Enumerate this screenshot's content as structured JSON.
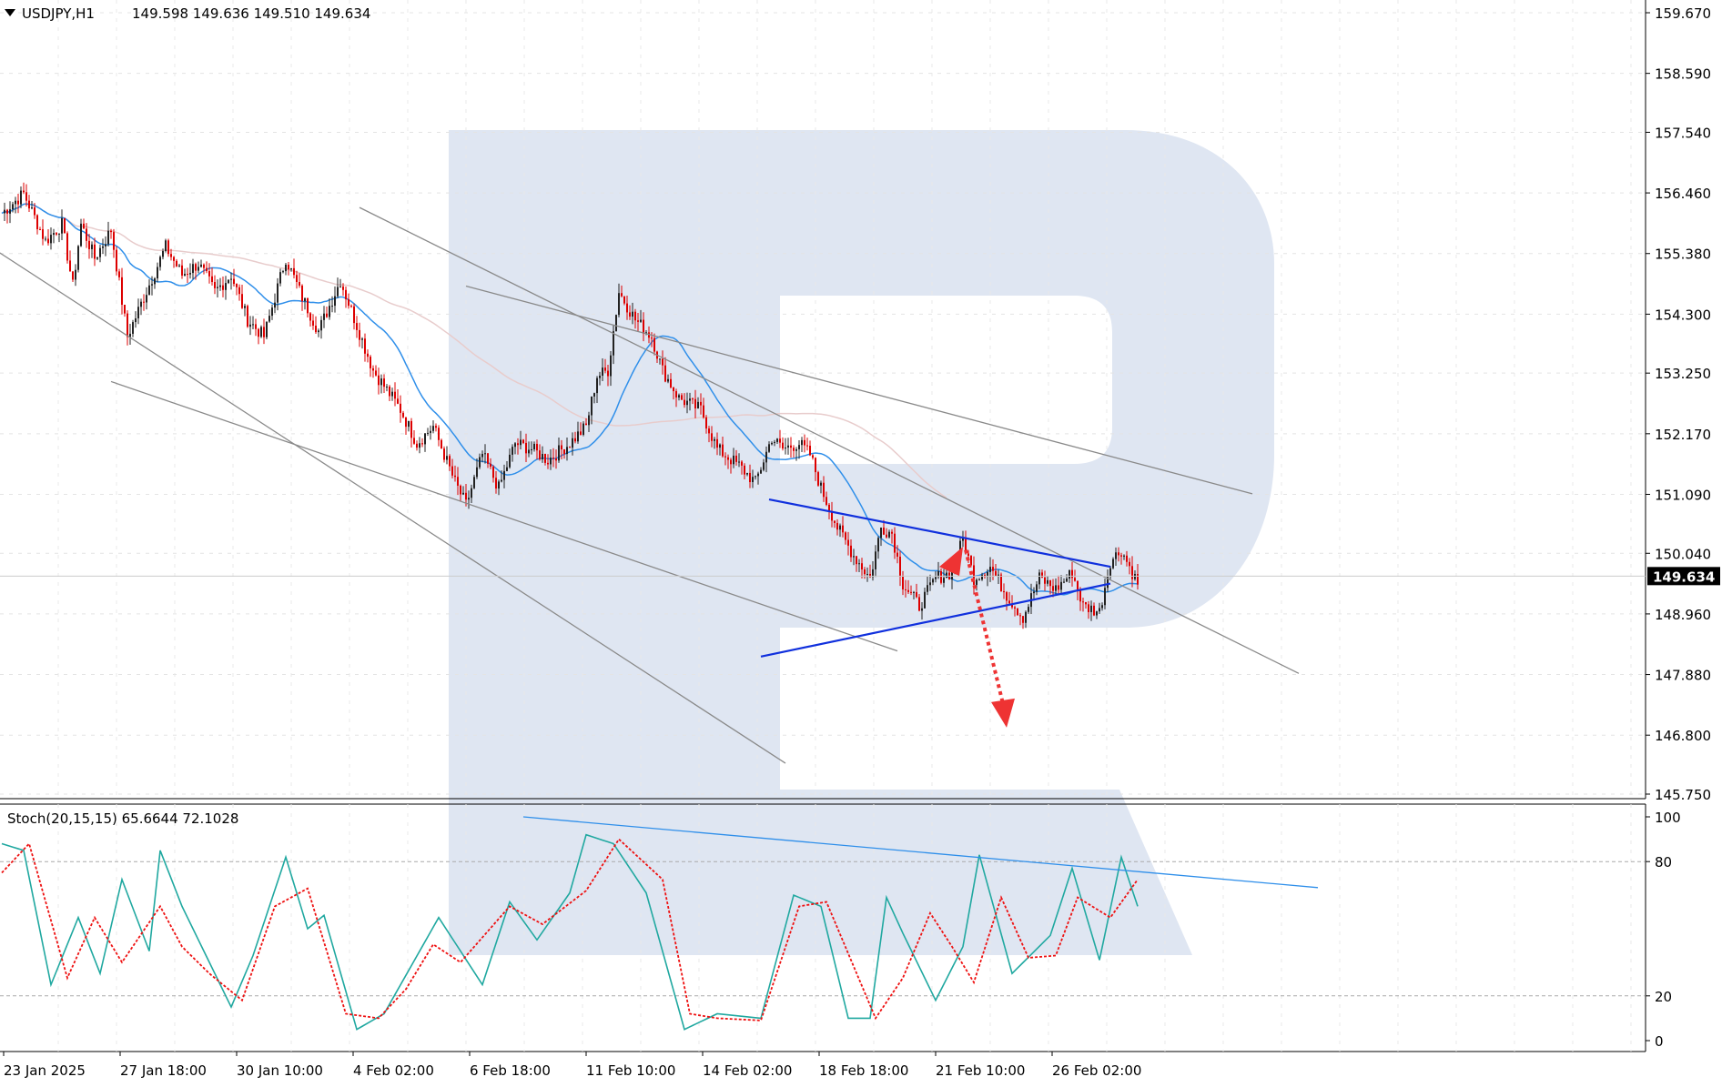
{
  "symbol_header": {
    "menu_arrow": "triangle-down-icon",
    "symbol": "USDJPY,H1",
    "ohlc": "149.598 149.636 149.510 149.634"
  },
  "oscillator_header": {
    "label": "Stoch(20,15,15) 65.6644 72.1028"
  },
  "watermark": {
    "shape": "R",
    "color": "#dfe6f2"
  },
  "colors": {
    "bull_candle": "#222222",
    "bear_candle": "#dd0000",
    "ma_fast": "#2f8fea",
    "ma_slow": "#e8cccc",
    "trendline": "#8a8a8a",
    "triangle": "#1030dd",
    "forecast": "#ee3333",
    "stoch_main": "#20a8a0",
    "stoch_signal": "#ee1111",
    "price_tag_bg": "#000000"
  },
  "chart_data": [
    {
      "type": "candlestick",
      "symbol": "USDJPY",
      "timeframe": "H1",
      "current_price": "149.634",
      "y_ticks": [
        "159.670",
        "158.590",
        "157.540",
        "156.460",
        "155.380",
        "154.300",
        "153.250",
        "152.170",
        "151.090",
        "150.040",
        "148.960",
        "147.880",
        "146.800",
        "145.750"
      ],
      "ylim": [
        145.75,
        159.67
      ],
      "x_ticks": [
        "23 Jan 2025",
        "27 Jan 18:00",
        "30 Jan 10:00",
        "4 Feb 02:00",
        "6 Feb 18:00",
        "11 Feb 10:00",
        "14 Feb 02:00",
        "18 Feb 18:00",
        "21 Feb 10:00",
        "26 Feb 02:00"
      ],
      "price_path": [
        [
          0,
          156.1
        ],
        [
          8,
          156.45
        ],
        [
          16,
          155.6
        ],
        [
          22,
          155.9
        ],
        [
          26,
          154.8
        ],
        [
          29,
          155.9
        ],
        [
          34,
          155.3
        ],
        [
          40,
          155.8
        ],
        [
          46,
          153.9
        ],
        [
          52,
          154.6
        ],
        [
          60,
          155.5
        ],
        [
          66,
          155.0
        ],
        [
          72,
          155.2
        ],
        [
          78,
          154.7
        ],
        [
          84,
          155.0
        ],
        [
          90,
          154.2
        ],
        [
          96,
          153.9
        ],
        [
          104,
          155.3
        ],
        [
          110,
          154.6
        ],
        [
          116,
          154.0
        ],
        [
          124,
          154.9
        ],
        [
          130,
          154.1
        ],
        [
          136,
          153.3
        ],
        [
          146,
          152.6
        ],
        [
          152,
          152.0
        ],
        [
          158,
          152.3
        ],
        [
          166,
          151.3
        ],
        [
          170,
          150.9
        ],
        [
          176,
          151.8
        ],
        [
          182,
          151.2
        ],
        [
          188,
          152.0
        ],
        [
          194,
          151.9
        ],
        [
          200,
          151.7
        ],
        [
          208,
          152.0
        ],
        [
          214,
          152.3
        ],
        [
          218,
          153.2
        ],
        [
          222,
          153.3
        ],
        [
          226,
          154.7
        ],
        [
          232,
          154.2
        ],
        [
          238,
          153.9
        ],
        [
          242,
          153.3
        ],
        [
          248,
          152.8
        ],
        [
          256,
          152.6
        ],
        [
          262,
          151.9
        ],
        [
          270,
          151.6
        ],
        [
          276,
          151.3
        ],
        [
          282,
          152.1
        ],
        [
          286,
          151.9
        ],
        [
          292,
          152.0
        ],
        [
          296,
          151.8
        ],
        [
          300,
          151.2
        ],
        [
          306,
          150.5
        ],
        [
          312,
          150.0
        ],
        [
          318,
          149.6
        ],
        [
          322,
          150.5
        ],
        [
          326,
          150.4
        ],
        [
          330,
          149.5
        ],
        [
          336,
          149.1
        ],
        [
          342,
          149.6
        ],
        [
          348,
          149.7
        ],
        [
          352,
          150.3
        ],
        [
          356,
          149.6
        ],
        [
          362,
          149.8
        ],
        [
          368,
          149.3
        ],
        [
          374,
          148.9
        ],
        [
          380,
          149.6
        ],
        [
          386,
          149.4
        ],
        [
          392,
          149.7
        ],
        [
          396,
          149.1
        ],
        [
          402,
          149.0
        ],
        [
          406,
          149.9
        ],
        [
          410,
          150.1
        ],
        [
          416,
          149.5
        ]
      ],
      "moving_averages": [
        {
          "name": "fast",
          "color_key": "ma_fast"
        },
        {
          "name": "slow",
          "color_key": "ma_slow"
        }
      ],
      "forecast": {
        "direction": "down",
        "from": 150.1,
        "to": 147.0
      }
    },
    {
      "type": "line",
      "indicator": "Stoch(20,15,15)",
      "main": 65.6644,
      "signal": 72.1028,
      "y_ticks": [
        "100",
        "80",
        "20",
        "0"
      ],
      "ylim": [
        0,
        100
      ],
      "levels": [
        80,
        20
      ],
      "main_path": [
        [
          0,
          88
        ],
        [
          8,
          85
        ],
        [
          18,
          25
        ],
        [
          28,
          55
        ],
        [
          36,
          30
        ],
        [
          44,
          72
        ],
        [
          54,
          40
        ],
        [
          58,
          85
        ],
        [
          66,
          60
        ],
        [
          74,
          40
        ],
        [
          84,
          15
        ],
        [
          92,
          38
        ],
        [
          104,
          82
        ],
        [
          112,
          50
        ],
        [
          118,
          56
        ],
        [
          130,
          5
        ],
        [
          140,
          12
        ],
        [
          160,
          55
        ],
        [
          176,
          25
        ],
        [
          186,
          62
        ],
        [
          196,
          45
        ],
        [
          208,
          66
        ],
        [
          214,
          92
        ],
        [
          224,
          88
        ],
        [
          236,
          66
        ],
        [
          250,
          5
        ],
        [
          262,
          12
        ],
        [
          278,
          10
        ],
        [
          290,
          65
        ],
        [
          300,
          60
        ],
        [
          310,
          10
        ],
        [
          318,
          10
        ],
        [
          324,
          64
        ],
        [
          330,
          48
        ],
        [
          342,
          18
        ],
        [
          352,
          42
        ],
        [
          358,
          83
        ],
        [
          370,
          30
        ],
        [
          384,
          47
        ],
        [
          392,
          77
        ],
        [
          402,
          36
        ],
        [
          410,
          82
        ],
        [
          416,
          60
        ]
      ],
      "signal_path": [
        [
          0,
          75
        ],
        [
          10,
          88
        ],
        [
          24,
          28
        ],
        [
          34,
          55
        ],
        [
          44,
          35
        ],
        [
          58,
          60
        ],
        [
          66,
          42
        ],
        [
          76,
          30
        ],
        [
          88,
          18
        ],
        [
          100,
          60
        ],
        [
          112,
          68
        ],
        [
          126,
          12
        ],
        [
          138,
          10
        ],
        [
          148,
          23
        ],
        [
          158,
          43
        ],
        [
          168,
          35
        ],
        [
          186,
          60
        ],
        [
          198,
          52
        ],
        [
          214,
          67
        ],
        [
          226,
          90
        ],
        [
          242,
          72
        ],
        [
          252,
          12
        ],
        [
          262,
          10
        ],
        [
          278,
          9
        ],
        [
          292,
          60
        ],
        [
          302,
          62
        ],
        [
          320,
          10
        ],
        [
          330,
          28
        ],
        [
          340,
          57
        ],
        [
          348,
          42
        ],
        [
          356,
          26
        ],
        [
          366,
          64
        ],
        [
          376,
          37
        ],
        [
          386,
          38
        ],
        [
          394,
          64
        ],
        [
          406,
          55
        ],
        [
          416,
          72
        ]
      ],
      "divergence_line": {
        "from": 100,
        "to": 83
      }
    }
  ]
}
